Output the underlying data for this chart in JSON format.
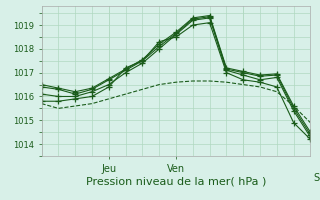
{
  "background_color": "#d8f0e8",
  "grid_color": "#b0d8c0",
  "line_color": "#1a5c1a",
  "marker_color": "#1a5c1a",
  "xlabel": "Pression niveau de la mer( hPa )",
  "xlabel_fontsize": 8,
  "ylabel_ticks": [
    1014,
    1015,
    1016,
    1017,
    1018,
    1019
  ],
  "xlim": [
    0,
    96
  ],
  "ylim": [
    1013.6,
    1019.8
  ],
  "xtick_minor_positions": [
    0,
    6,
    12,
    18,
    24,
    30,
    36,
    42,
    48,
    54,
    60,
    66,
    72,
    78,
    84,
    90,
    96
  ],
  "ytick_minor_positions": [
    1013.5,
    1014.0,
    1014.5,
    1015.0,
    1015.5,
    1016.0,
    1016.5,
    1017.0,
    1017.5,
    1018.0,
    1018.5,
    1019.0,
    1019.5
  ],
  "series": [
    {
      "x": [
        0,
        6,
        12,
        18,
        24,
        30,
        36,
        42,
        48,
        54,
        60,
        66,
        72,
        78,
        84,
        90,
        96
      ],
      "y": [
        1015.8,
        1015.8,
        1015.9,
        1016.0,
        1016.4,
        1017.2,
        1017.5,
        1018.3,
        1018.5,
        1019.0,
        1019.1,
        1017.0,
        1016.7,
        1016.6,
        1016.4,
        1014.9,
        1014.2
      ],
      "marker": true
    },
    {
      "x": [
        0,
        6,
        12,
        18,
        24,
        30,
        36,
        42,
        48,
        54,
        60,
        66,
        72,
        78,
        84,
        90,
        96
      ],
      "y": [
        1016.1,
        1016.0,
        1016.0,
        1016.2,
        1016.5,
        1017.0,
        1017.4,
        1018.0,
        1018.6,
        1019.2,
        1019.3,
        1017.1,
        1016.9,
        1016.7,
        1016.8,
        1015.4,
        1014.3
      ],
      "marker": true
    },
    {
      "x": [
        0,
        6,
        12,
        18,
        24,
        30,
        36,
        42,
        48,
        54,
        60,
        66,
        72,
        78,
        84,
        90,
        96
      ],
      "y": [
        1016.4,
        1016.3,
        1016.1,
        1016.3,
        1016.7,
        1017.1,
        1017.5,
        1018.1,
        1018.65,
        1019.25,
        1019.35,
        1017.15,
        1017.0,
        1016.85,
        1016.9,
        1015.5,
        1014.4
      ],
      "marker": true
    },
    {
      "x": [
        0,
        6,
        12,
        18,
        24,
        30,
        36,
        42,
        48,
        54,
        60,
        66,
        72,
        78,
        84,
        90,
        96
      ],
      "y": [
        1016.5,
        1016.35,
        1016.2,
        1016.35,
        1016.75,
        1017.15,
        1017.55,
        1018.2,
        1018.7,
        1019.3,
        1019.4,
        1017.2,
        1017.05,
        1016.9,
        1016.95,
        1015.6,
        1014.5
      ],
      "marker": true
    },
    {
      "x": [
        0,
        6,
        12,
        18,
        24,
        30,
        36,
        42,
        48,
        54,
        60,
        66,
        72,
        78,
        84,
        90,
        96
      ],
      "y": [
        1015.7,
        1015.5,
        1015.6,
        1015.7,
        1015.9,
        1016.1,
        1016.3,
        1016.5,
        1016.6,
        1016.65,
        1016.65,
        1016.6,
        1016.5,
        1016.4,
        1016.2,
        1015.6,
        1014.9
      ],
      "marker": false
    }
  ]
}
